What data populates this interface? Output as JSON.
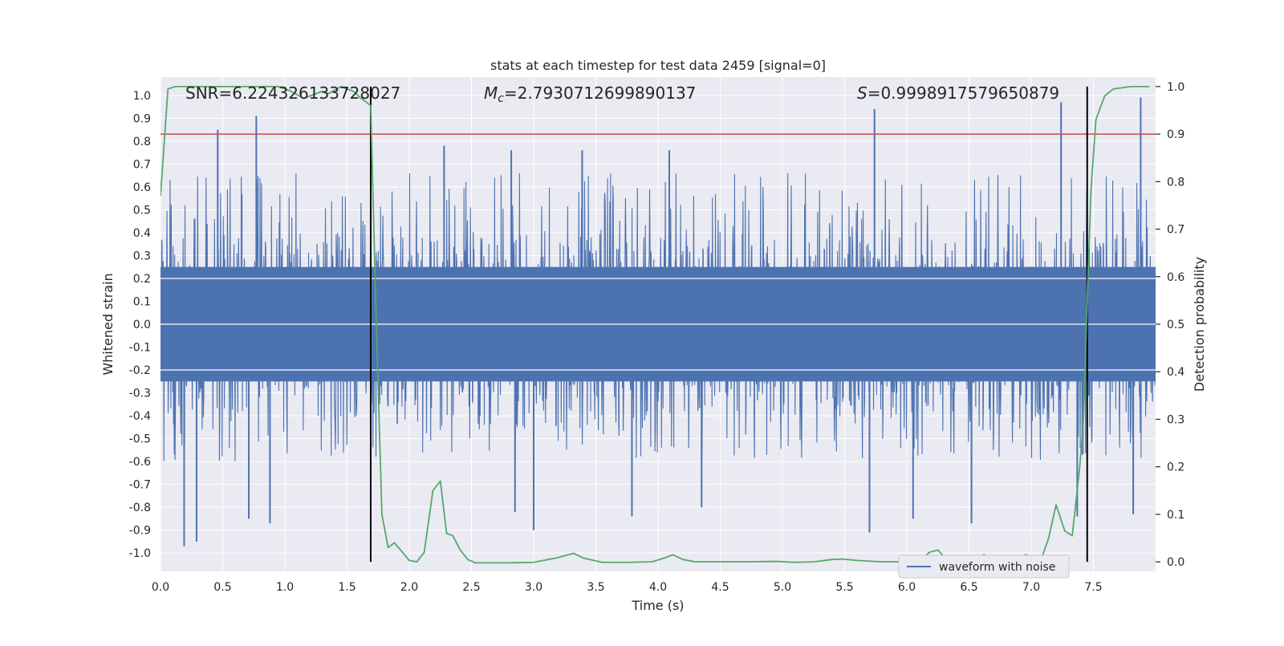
{
  "chart_data": {
    "type": "line",
    "title": "stats at each timestep for test data 2459 [signal=0]",
    "xlabel": "Time (s)",
    "ylabel": "Whitened strain",
    "y2label": "Detection probability",
    "xlim": [
      0.0,
      8.0
    ],
    "ylim": [
      -1.08,
      1.08
    ],
    "y2lim": [
      -0.02,
      1.02
    ],
    "xticks": [
      "0.0",
      "0.5",
      "1.0",
      "1.5",
      "2.0",
      "2.5",
      "3.0",
      "3.5",
      "4.0",
      "4.5",
      "5.0",
      "5.5",
      "6.0",
      "6.5",
      "7.0",
      "7.5"
    ],
    "yticks": [
      "1.0",
      "0.9",
      "0.8",
      "0.7",
      "0.6",
      "0.5",
      "0.4",
      "0.3",
      "0.2",
      "0.1",
      "0.0",
      "-0.1",
      "-0.2",
      "-0.3",
      "-0.4",
      "-0.5",
      "-0.6",
      "-0.7",
      "-0.8",
      "-0.9",
      "-1.0"
    ],
    "y2ticks": [
      "1.0",
      "0.9",
      "0.8",
      "0.7",
      "0.6",
      "0.5",
      "0.4",
      "0.3",
      "0.2",
      "0.1",
      "0.0"
    ],
    "grid": true,
    "annotations": {
      "snr": "SNR=6.224326133728027",
      "mc_symbol": "M",
      "mc_sub": "c",
      "mc_value": "=2.7930712699890137",
      "s_symbol": "S",
      "s_value": "=0.9998917579650879"
    },
    "threshold": {
      "y2": 0.9,
      "color": "#c44e52"
    },
    "vlines": [
      1.69,
      7.45
    ],
    "legend": {
      "position": "lower-right",
      "entries": [
        "waveform with noise"
      ]
    },
    "series": [
      {
        "name": "waveform with noise",
        "axis": "left",
        "color": "#4c72b0",
        "kind": "noise",
        "band": 0.25,
        "typical_peak_max": 0.66,
        "typical_peak_min": -0.6,
        "spikes": [
          [
            0.19,
            -0.97
          ],
          [
            0.29,
            -0.95
          ],
          [
            0.46,
            0.85
          ],
          [
            0.77,
            0.91
          ],
          [
            0.71,
            -0.85
          ],
          [
            0.88,
            -0.87
          ],
          [
            2.28,
            0.78
          ],
          [
            2.82,
            0.76
          ],
          [
            3.39,
            0.76
          ],
          [
            3.79,
            -0.84
          ],
          [
            4.09,
            0.76
          ],
          [
            3.0,
            -0.9
          ],
          [
            2.85,
            -0.82
          ],
          [
            4.35,
            -0.8
          ],
          [
            5.74,
            0.94
          ],
          [
            5.7,
            -0.91
          ],
          [
            6.52,
            -0.87
          ],
          [
            7.24,
            0.97
          ],
          [
            7.37,
            -0.84
          ],
          [
            7.88,
            0.99
          ],
          [
            7.82,
            -0.83
          ],
          [
            6.05,
            -0.85
          ]
        ]
      },
      {
        "name": "detection probability",
        "axis": "right",
        "color": "#55a868",
        "t": [
          0.0,
          0.06,
          0.12,
          0.2,
          0.4,
          0.6,
          0.8,
          0.95,
          1.05,
          1.15,
          1.25,
          1.3,
          1.35,
          1.45,
          1.55,
          1.6,
          1.69,
          1.73,
          1.78,
          1.83,
          1.88,
          1.93,
          2.0,
          2.06,
          2.12,
          2.19,
          2.25,
          2.3,
          2.35,
          2.41,
          2.47,
          2.53,
          2.59,
          2.65,
          2.8,
          3.0,
          3.18,
          3.32,
          3.4,
          3.55,
          3.75,
          3.95,
          4.05,
          4.12,
          4.2,
          4.3,
          4.5,
          4.7,
          4.95,
          5.1,
          5.25,
          5.4,
          5.48,
          5.6,
          5.8,
          6.0,
          6.12,
          6.18,
          6.25,
          6.32,
          6.38,
          6.46,
          6.54,
          6.62,
          6.68,
          6.75,
          6.83,
          6.9,
          6.96,
          7.02,
          7.08,
          7.14,
          7.2,
          7.27,
          7.33,
          7.39,
          7.42,
          7.45,
          7.48,
          7.52,
          7.59,
          7.66,
          7.8,
          7.95
        ],
        "prob": [
          0.77,
          0.995,
          1.0,
          1.0,
          1.0,
          1.0,
          1.0,
          1.0,
          0.99,
          0.975,
          0.985,
          0.99,
          0.985,
          1.0,
          0.99,
          0.978,
          0.96,
          0.55,
          0.1,
          0.03,
          0.04,
          0.025,
          0.003,
          0.0,
          0.02,
          0.15,
          0.17,
          0.06,
          0.055,
          0.025,
          0.005,
          -0.002,
          -0.002,
          -0.002,
          -0.002,
          -0.001,
          0.008,
          0.018,
          0.008,
          -0.001,
          -0.001,
          0.0,
          0.008,
          0.015,
          0.005,
          0.0,
          0.0,
          0.0,
          0.001,
          -0.001,
          0.0,
          0.005,
          0.006,
          0.003,
          0.0,
          0.0,
          0.004,
          0.02,
          0.025,
          0.005,
          0.0,
          0.0,
          0.005,
          0.015,
          0.005,
          0.002,
          0.003,
          0.01,
          0.015,
          0.005,
          0.005,
          0.05,
          0.12,
          0.065,
          0.055,
          0.2,
          0.3,
          0.55,
          0.78,
          0.93,
          0.98,
          0.995,
          1.0,
          1.0
        ]
      }
    ]
  }
}
